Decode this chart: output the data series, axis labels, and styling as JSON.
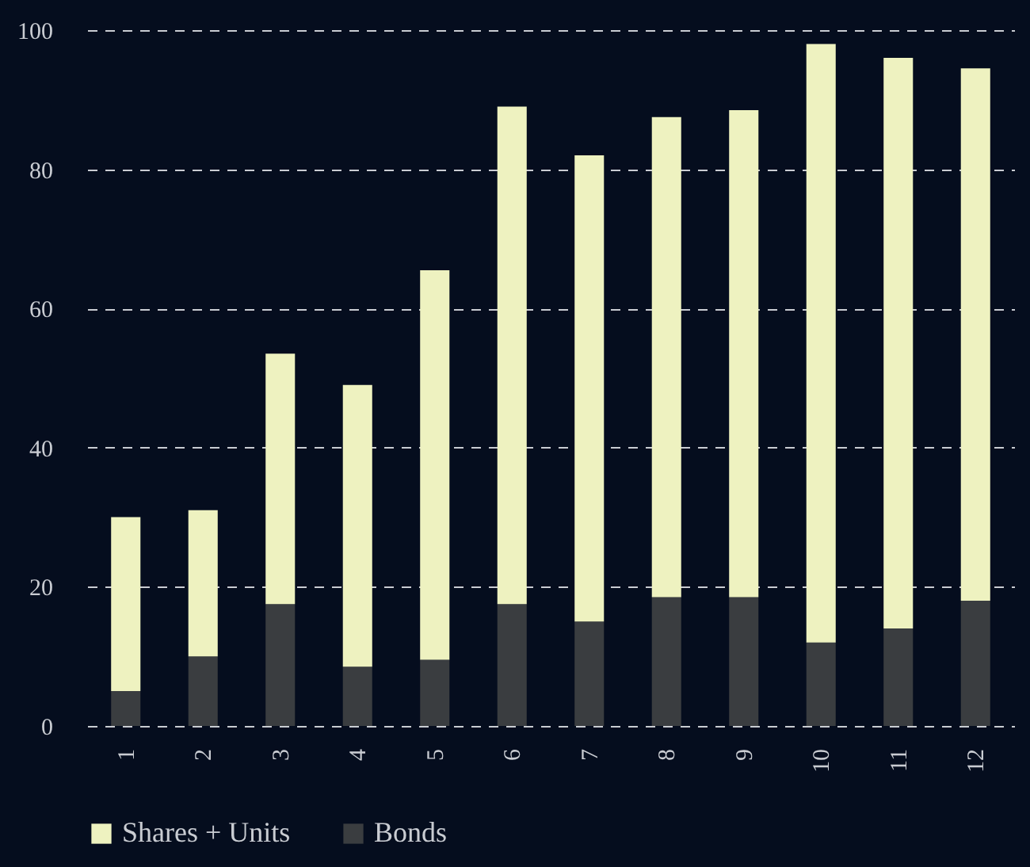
{
  "chart_data": {
    "type": "bar",
    "stacked": true,
    "categories": [
      "1",
      "2",
      "3",
      "4",
      "5",
      "6",
      "7",
      "8",
      "9",
      "10",
      "11",
      "12"
    ],
    "series": [
      {
        "name": "Bonds",
        "color": "#3a3d40",
        "values": [
          5,
          10,
          17.5,
          8.5,
          9.5,
          17.5,
          15,
          18.5,
          18.5,
          12,
          14,
          18
        ]
      },
      {
        "name": "Shares + Units",
        "color": "#eef2c0",
        "values": [
          25,
          21,
          36,
          40.5,
          56,
          71.5,
          67,
          69,
          70,
          86,
          82,
          76.5
        ]
      }
    ],
    "ylim": [
      0,
      100
    ],
    "yticks": [
      0,
      20,
      40,
      60,
      80,
      100
    ],
    "grid": "y",
    "legend": "bottom"
  }
}
